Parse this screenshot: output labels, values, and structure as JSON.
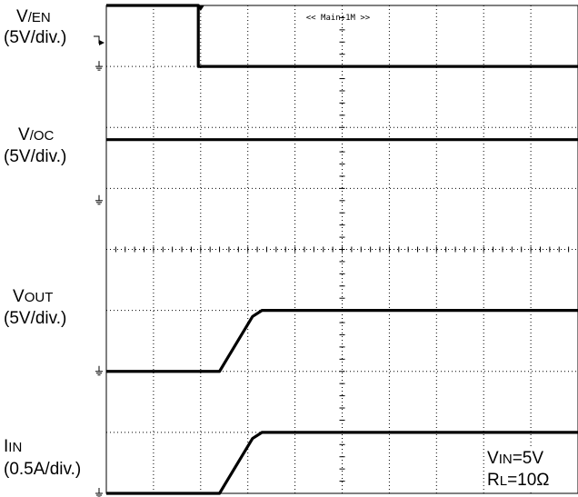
{
  "chart_data": {
    "type": "line",
    "title": "",
    "grid": {
      "divisions_x": 10,
      "divisions_y": 8
    },
    "timebase_label": "<< Main:1M >>",
    "x": [
      0,
      1.95,
      2.0,
      2.4,
      2.5,
      3.1,
      3.3,
      4.0,
      6.0,
      8.0,
      10.0
    ],
    "xlim": [
      0,
      10
    ],
    "ylim": [
      0,
      8
    ],
    "series": [
      {
        "name": "V/EN",
        "prefix": "V",
        "subscript": "/EN",
        "scale": "(5V/div.)",
        "ground_level": 7.0,
        "values": [
          1.0,
          1.0,
          0.0,
          0.0,
          0.0,
          0.0,
          0.0,
          0.0,
          0.0,
          0.0,
          0.0
        ]
      },
      {
        "name": "V/OC",
        "prefix": "V",
        "subscript": "/OC",
        "scale": "(5V/div.)",
        "ground_level": 4.8,
        "values": [
          1.0,
          1.0,
          1.0,
          1.0,
          1.0,
          1.0,
          1.0,
          1.0,
          1.0,
          1.0,
          1.0
        ]
      },
      {
        "name": "VOUT",
        "prefix": "V",
        "subscript": "OUT",
        "scale": "(5V/div.)",
        "ground_level": 2.0,
        "values": [
          0.0,
          0.0,
          0.0,
          0.0,
          0.13,
          0.9,
          1.0,
          1.0,
          1.0,
          1.0,
          1.0
        ]
      },
      {
        "name": "IIN",
        "prefix": "I",
        "subscript": "IN",
        "scale": "(0.5A/div.)",
        "ground_level": 0.0,
        "values": [
          0.0,
          0.0,
          0.0,
          0.0,
          0.13,
          0.9,
          1.0,
          1.0,
          1.0,
          1.0,
          1.0
        ]
      }
    ],
    "conditions": [
      {
        "prefix": "V",
        "subscript": "IN",
        "value": "=5V"
      },
      {
        "prefix": "R",
        "subscript": "L",
        "value": "=10Ω"
      }
    ]
  },
  "colors": {
    "trace": "#000000",
    "grid": "#000000",
    "background": "#ffffff"
  }
}
